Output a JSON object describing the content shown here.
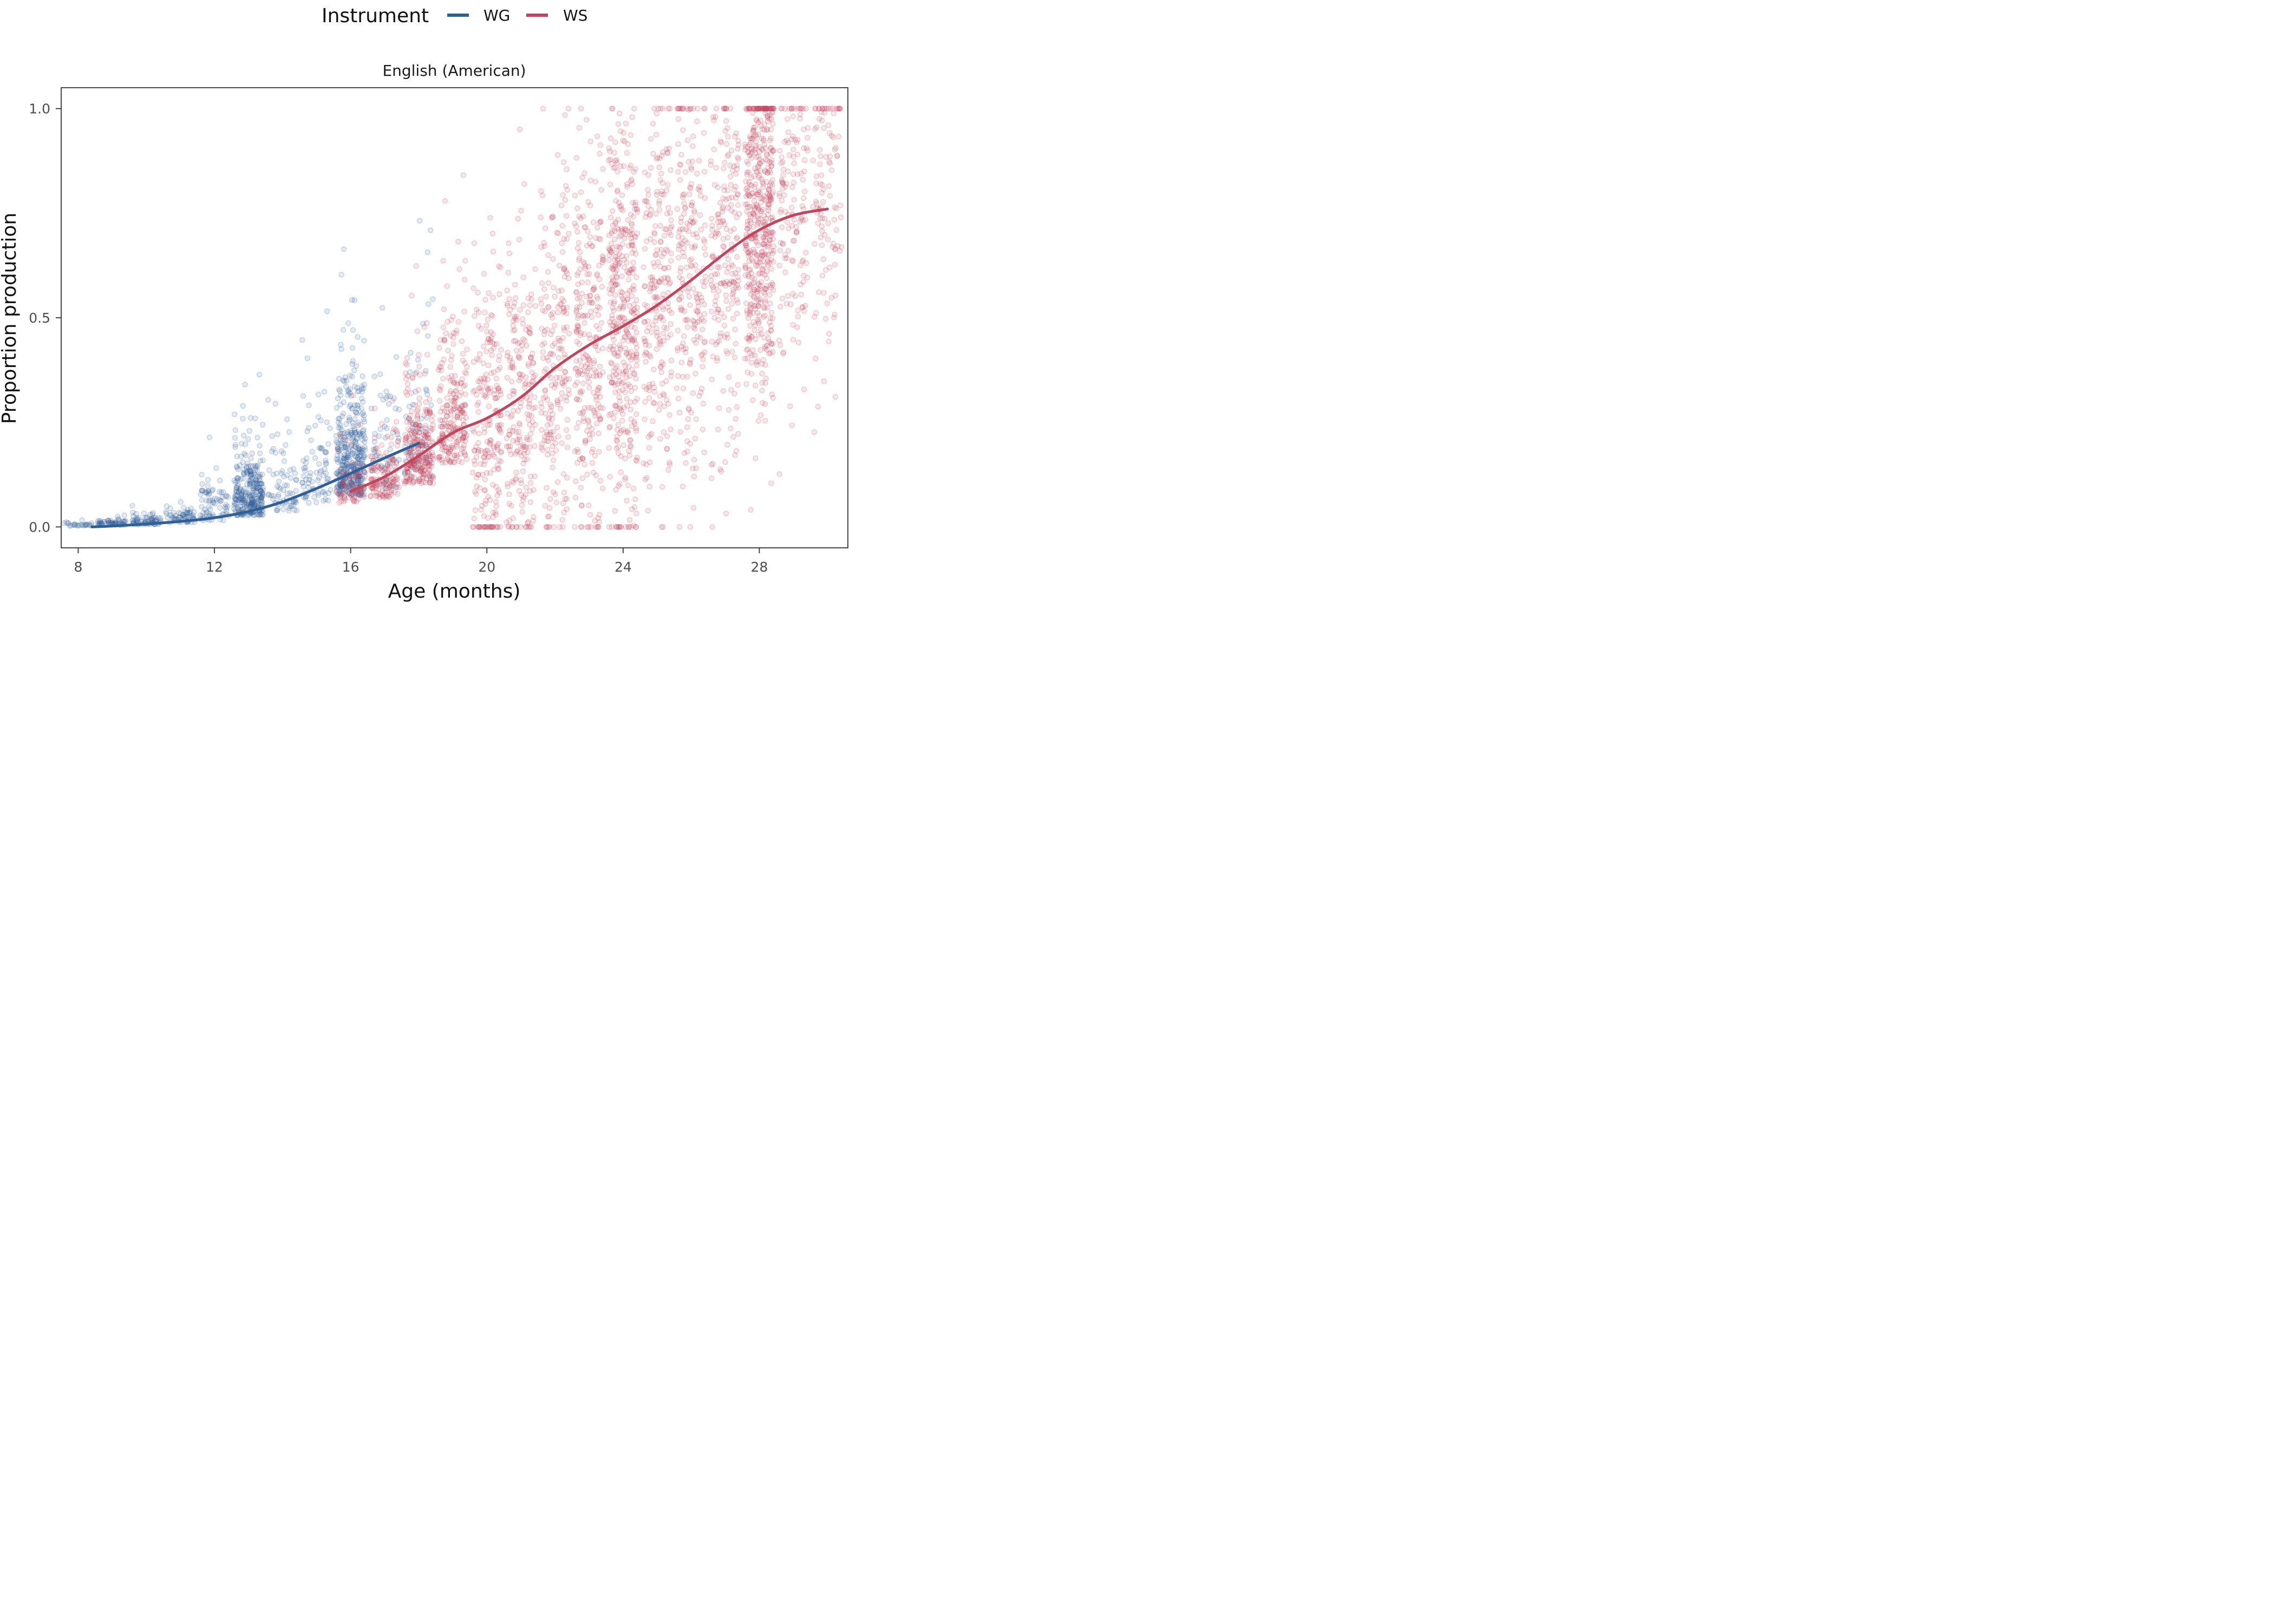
{
  "chart_data": {
    "type": "scatter",
    "facet_title": "English (American)",
    "xlabel": "Age (months)",
    "ylabel": "Proportion production",
    "xlim": [
      7.5,
      30.6
    ],
    "ylim": [
      -0.05,
      1.05
    ],
    "x_ticks": [
      8,
      12,
      16,
      20,
      24,
      28
    ],
    "x_tick_labels": [
      "8",
      "12",
      "16",
      "20",
      "24",
      "28"
    ],
    "y_ticks": [
      0,
      0.5,
      1
    ],
    "y_tick_labels": [
      "0.0",
      "0.5",
      "1.0"
    ],
    "grid": false,
    "legend": {
      "title": "Instrument",
      "position": "top",
      "entries": [
        {
          "label": "WG",
          "color": "#2f5f97"
        },
        {
          "label": "WS",
          "color": "#c0465f"
        }
      ]
    },
    "series": [
      {
        "name": "WG",
        "color": "#2f5f97",
        "age_range": [
          8,
          18
        ],
        "smooth_curve": {
          "x": [
            8.4,
            9,
            10,
            11,
            12,
            13,
            14,
            15,
            16,
            17,
            18
          ],
          "y": [
            0.0,
            0.002,
            0.007,
            0.013,
            0.022,
            0.037,
            0.06,
            0.092,
            0.128,
            0.165,
            0.2
          ]
        },
        "point_distribution_by_age": [
          {
            "age": 8,
            "mean": 0.004,
            "spread": 0.006,
            "n": 25
          },
          {
            "age": 9,
            "mean": 0.006,
            "spread": 0.01,
            "n": 55
          },
          {
            "age": 10,
            "mean": 0.009,
            "spread": 0.014,
            "n": 65
          },
          {
            "age": 11,
            "mean": 0.015,
            "spread": 0.02,
            "n": 60
          },
          {
            "age": 12,
            "mean": 0.028,
            "spread": 0.05,
            "n": 75
          },
          {
            "age": 13,
            "mean": 0.045,
            "spread": 0.07,
            "n": 300
          },
          {
            "age": 14,
            "mean": 0.055,
            "spread": 0.08,
            "n": 70
          },
          {
            "age": 15,
            "mean": 0.085,
            "spread": 0.12,
            "n": 80
          },
          {
            "age": 16,
            "mean": 0.11,
            "spread": 0.14,
            "n": 380
          },
          {
            "age": 17,
            "mean": 0.13,
            "spread": 0.17,
            "n": 55
          },
          {
            "age": 18,
            "mean": 0.16,
            "spread": 0.19,
            "n": 60
          }
        ]
      },
      {
        "name": "WS",
        "color": "#c0465f",
        "age_range": [
          16,
          30
        ],
        "smooth_curve": {
          "x": [
            16,
            17,
            18,
            19,
            20,
            21,
            22,
            23,
            24,
            25,
            26,
            27,
            28,
            29,
            30
          ],
          "y": [
            0.085,
            0.12,
            0.17,
            0.225,
            0.26,
            0.31,
            0.38,
            0.435,
            0.48,
            0.53,
            0.59,
            0.655,
            0.71,
            0.745,
            0.76
          ]
        },
        "point_distribution_by_age": [
          {
            "age": 16,
            "mean": 0.07,
            "spread": 0.05,
            "n": 80
          },
          {
            "age": 17,
            "mean": 0.09,
            "spread": 0.08,
            "n": 140
          },
          {
            "age": 18,
            "mean": 0.13,
            "spread": 0.11,
            "n": 270
          },
          {
            "age": 19,
            "mean": 0.19,
            "spread": 0.15,
            "n": 230
          },
          {
            "age": 20,
            "mean": 0.24,
            "spread": 0.18,
            "n": 220
          },
          {
            "age": 21,
            "mean": 0.3,
            "spread": 0.2,
            "n": 210
          },
          {
            "age": 22,
            "mean": 0.37,
            "spread": 0.22,
            "n": 210
          },
          {
            "age": 23,
            "mean": 0.43,
            "spread": 0.23,
            "n": 260
          },
          {
            "age": 24,
            "mean": 0.48,
            "spread": 0.24,
            "n": 400
          },
          {
            "age": 25,
            "mean": 0.53,
            "spread": 0.24,
            "n": 230
          },
          {
            "age": 26,
            "mean": 0.58,
            "spread": 0.23,
            "n": 220
          },
          {
            "age": 27,
            "mean": 0.64,
            "spread": 0.22,
            "n": 210
          },
          {
            "age": 28,
            "mean": 0.72,
            "spread": 0.21,
            "n": 520
          },
          {
            "age": 29,
            "mean": 0.75,
            "spread": 0.2,
            "n": 140
          },
          {
            "age": 30,
            "mean": 0.77,
            "spread": 0.19,
            "n": 110
          }
        ]
      }
    ]
  }
}
